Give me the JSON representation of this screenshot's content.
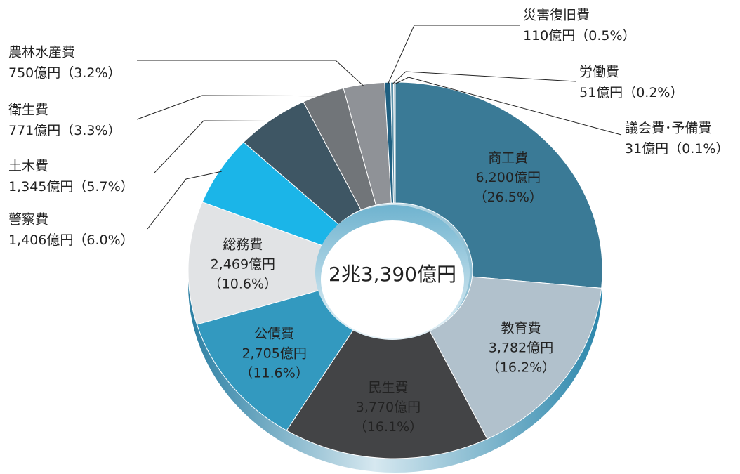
{
  "chart_data": {
    "type": "pie",
    "center_label": "2兆3,390億円",
    "categories": [
      "商工費",
      "教育費",
      "民生費",
      "公債費",
      "総務費",
      "警察費",
      "土木費",
      "衛生費",
      "農林水産費",
      "災害復旧費",
      "労働費",
      "議会費･予備費"
    ],
    "values": [
      6200,
      3782,
      3770,
      2705,
      2469,
      1406,
      1345,
      771,
      750,
      110,
      51,
      31
    ],
    "value_labels": [
      "6,200億円",
      "3,782億円",
      "3,770億円",
      "2,705億円",
      "2,469億円",
      "1,406億円",
      "1,345億円",
      "771億円",
      "750億円",
      "110億円",
      "51億円",
      "31億円"
    ],
    "shares": [
      26.5,
      16.2,
      16.1,
      11.6,
      10.6,
      6.0,
      5.7,
      3.3,
      3.2,
      0.5,
      0.2,
      0.1
    ],
    "share_labels": [
      "（26.5%）",
      "（16.2%）",
      "（16.1%）",
      "（11.6%）",
      "（10.6%）",
      "（6.0%）",
      "（5.7%）",
      "（3.3%）",
      "（3.2%）",
      "（0.5%）",
      "（0.2%）",
      "（0.1%）"
    ],
    "colors": [
      "#3a7a96",
      "#b1c1cc",
      "#434446",
      "#3399bf",
      "#e1e3e5",
      "#1bb5e8",
      "#3e5664",
      "#717579",
      "#8f9297",
      "#1f5f80",
      "#5a90a8",
      "#b3c6d0"
    ]
  }
}
